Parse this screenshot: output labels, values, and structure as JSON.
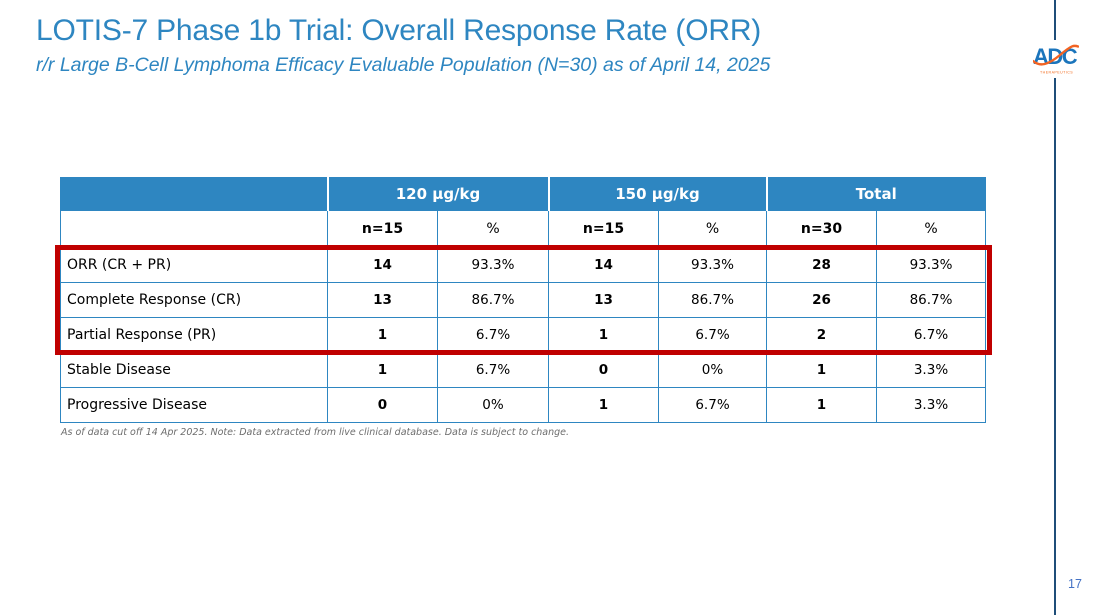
{
  "slide": {
    "title": "LOTIS-7 Phase 1b Trial: Overall Response Rate (ORR)",
    "subtitle": "r/r Large B-Cell Lymphoma Efficacy Evaluable Population (N=30) as of April 14, 2025",
    "footnote": "As of data cut off 14 Apr 2025. Note: Data extracted from live clinical database.  Data is subject to change.",
    "page_number": "17"
  },
  "logo": {
    "text": "ADC",
    "subtext": "THERAPEUTICS"
  },
  "colors": {
    "accent_blue": "#2E86C1",
    "header_blue": "#2E86C1",
    "outer_border_navy": "#1F4E79",
    "highlight_red": "#C00000",
    "page_number_blue": "#4472C4",
    "logo_blue": "#1B75BC",
    "logo_orange": "#F26322",
    "footnote_gray": "#6d6d6d"
  },
  "table": {
    "group_headers": [
      {
        "label": "",
        "span": 1
      },
      {
        "label": "120 μg/kg",
        "span": 2
      },
      {
        "label": "150 μg/kg",
        "span": 2
      },
      {
        "label": "Total",
        "span": 2
      }
    ],
    "sub_headers": [
      "",
      "n=15",
      "%",
      "n=15",
      "%",
      "n=30",
      "%"
    ],
    "rows": [
      {
        "label": "ORR (CR + PR)",
        "values": [
          "14",
          "93.3%",
          "14",
          "93.3%",
          "28",
          "93.3%"
        ],
        "highlighted": true
      },
      {
        "label": "Complete Response (CR)",
        "values": [
          "13",
          "86.7%",
          "13",
          "86.7%",
          "26",
          "86.7%"
        ],
        "highlighted": true
      },
      {
        "label": "Partial Response (PR)",
        "values": [
          "1",
          "6.7%",
          "1",
          "6.7%",
          "2",
          "6.7%"
        ],
        "highlighted": true
      },
      {
        "label": "Stable Disease",
        "values": [
          "1",
          "6.7%",
          "0",
          "0%",
          "1",
          "3.3%"
        ],
        "highlighted": false
      },
      {
        "label": "Progressive Disease",
        "values": [
          "0",
          "0%",
          "1",
          "6.7%",
          "1",
          "3.3%"
        ],
        "highlighted": false
      }
    ]
  }
}
